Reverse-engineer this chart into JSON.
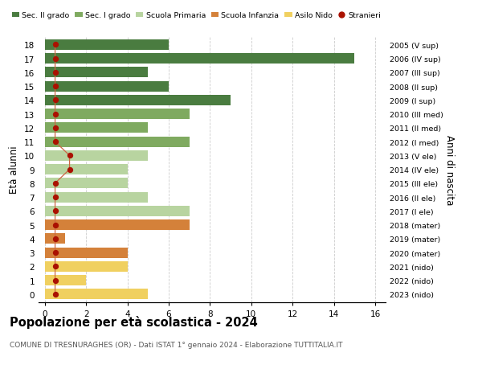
{
  "ages": [
    18,
    17,
    16,
    15,
    14,
    13,
    12,
    11,
    10,
    9,
    8,
    7,
    6,
    5,
    4,
    3,
    2,
    1,
    0
  ],
  "right_labels": [
    "2005 (V sup)",
    "2006 (IV sup)",
    "2007 (III sup)",
    "2008 (II sup)",
    "2009 (I sup)",
    "2010 (III med)",
    "2011 (II med)",
    "2012 (I med)",
    "2013 (V ele)",
    "2014 (IV ele)",
    "2015 (III ele)",
    "2016 (II ele)",
    "2017 (I ele)",
    "2018 (mater)",
    "2019 (mater)",
    "2020 (mater)",
    "2021 (nido)",
    "2022 (nido)",
    "2023 (nido)"
  ],
  "bar_values": [
    6,
    15,
    5,
    6,
    9,
    7,
    5,
    7,
    5,
    4,
    4,
    5,
    7,
    7,
    1,
    4,
    4,
    2,
    5
  ],
  "bar_colors": [
    "#4a7c40",
    "#4a7c40",
    "#4a7c40",
    "#4a7c40",
    "#4a7c40",
    "#7faa60",
    "#7faa60",
    "#7faa60",
    "#b8d4a0",
    "#b8d4a0",
    "#b8d4a0",
    "#b8d4a0",
    "#b8d4a0",
    "#d4813a",
    "#d4813a",
    "#d4813a",
    "#f0d060",
    "#f0d060",
    "#f0d060"
  ],
  "stranieri_x": [
    0.5,
    0.5,
    0.5,
    0.5,
    0.5,
    0.5,
    0.5,
    0.5,
    1.2,
    1.2,
    0.5,
    0.5,
    0.5,
    0.5,
    0.5,
    0.5,
    0.5,
    0.5,
    0.5
  ],
  "legend_labels": [
    "Sec. II grado",
    "Sec. I grado",
    "Scuola Primaria",
    "Scuola Infanzia",
    "Asilo Nido",
    "Stranieri"
  ],
  "legend_colors": [
    "#4a7c40",
    "#7faa60",
    "#b8d4a0",
    "#d4813a",
    "#f0d060",
    "#cc2200"
  ],
  "title": "Popolazione per età scolastica - 2024",
  "subtitle": "COMUNE DI TRESNURAGHES (OR) - Dati ISTAT 1° gennaio 2024 - Elaborazione TUTTITALIA.IT",
  "ylabel": "Età alunni",
  "right_ylabel": "Anni di nascita",
  "xlim": [
    -0.3,
    16.5
  ],
  "ylim": [
    -0.6,
    18.6
  ],
  "background_color": "#ffffff",
  "grid_color": "#cccccc",
  "stranieri_color": "#aa1100",
  "stranieri_line_color": "#cc6644"
}
